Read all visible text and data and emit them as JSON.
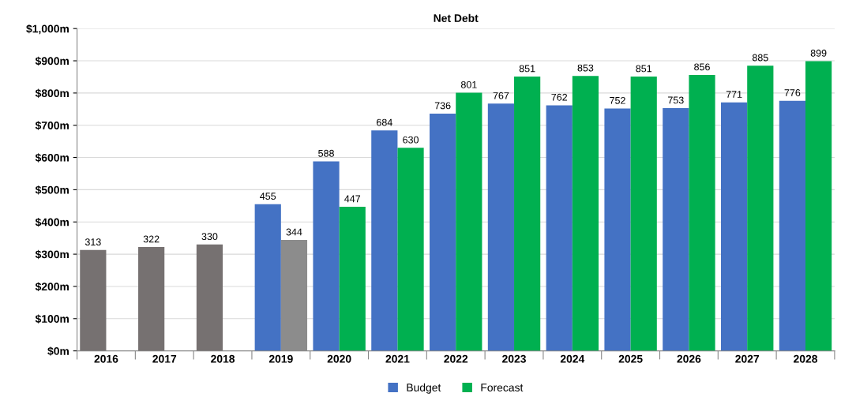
{
  "chart_data": {
    "type": "bar",
    "title": "Net Debt",
    "categories": [
      "2016",
      "2017",
      "2018",
      "2019",
      "2020",
      "2021",
      "2022",
      "2023",
      "2024",
      "2025",
      "2026",
      "2027",
      "2028"
    ],
    "series": [
      {
        "name": "Budget",
        "color": "#4472c4",
        "colors": [
          "#767171",
          "#767171",
          "#767171",
          "#4472c4",
          "#4472c4",
          "#4472c4",
          "#4472c4",
          "#4472c4",
          "#4472c4",
          "#4472c4",
          "#4472c4",
          "#4472c4",
          "#4472c4"
        ],
        "values": [
          313,
          322,
          330,
          455,
          588,
          684,
          736,
          767,
          762,
          752,
          753,
          771,
          776
        ]
      },
      {
        "name": "Forecast",
        "color": "#00b050",
        "colors": [
          null,
          null,
          null,
          "#8c8c8c",
          "#00b050",
          "#00b050",
          "#00b050",
          "#00b050",
          "#00b050",
          "#00b050",
          "#00b050",
          "#00b050",
          "#00b050"
        ],
        "values": [
          null,
          null,
          null,
          344,
          447,
          630,
          801,
          851,
          853,
          851,
          856,
          885,
          899
        ]
      }
    ],
    "ylim": [
      0,
      1000
    ],
    "yticks": [
      {
        "value": 0,
        "label": "$0m"
      },
      {
        "value": 100,
        "label": "$100m"
      },
      {
        "value": 200,
        "label": "$200m"
      },
      {
        "value": 300,
        "label": "$300m"
      },
      {
        "value": 400,
        "label": "$400m"
      },
      {
        "value": 500,
        "label": "$500m"
      },
      {
        "value": 600,
        "label": "$600m"
      },
      {
        "value": 700,
        "label": "$700m"
      },
      {
        "value": 800,
        "label": "$800m"
      },
      {
        "value": 900,
        "label": "$900m"
      },
      {
        "value": 1000,
        "label": "$1,000m"
      }
    ],
    "grid": "y",
    "legend": "bottom",
    "data_labels": true
  }
}
